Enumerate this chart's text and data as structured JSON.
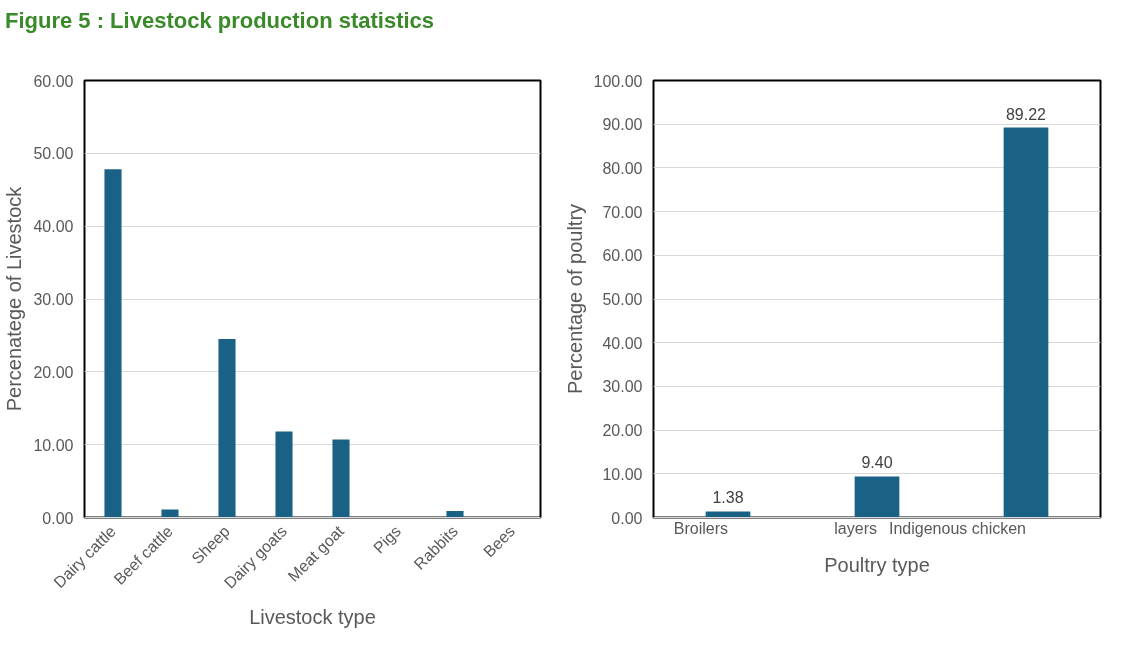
{
  "chart_data": [
    {
      "type": "bar",
      "title": "Figure 5 : Livestock production statistics",
      "xlabel": "Livestock type",
      "ylabel": "Percenatege of Livestock",
      "categories": [
        "Dairy cattle",
        "Beef cattle",
        "Sheep",
        "Dairy goats",
        "Meat goat",
        "Pigs",
        "Rabbits",
        "Bees"
      ],
      "values": [
        47.8,
        1.1,
        24.5,
        11.8,
        10.7,
        0,
        0.9,
        null
      ],
      "color": "#1a6285",
      "ylim": [
        0,
        60
      ],
      "yticks": [
        {
          "value": 0,
          "label": "0.00"
        },
        {
          "value": 10,
          "label": "10.00"
        },
        {
          "value": 20,
          "label": "20.00"
        },
        {
          "value": 30,
          "label": "30.00"
        },
        {
          "value": 40,
          "label": "40.00"
        },
        {
          "value": 50,
          "label": "50.00"
        },
        {
          "value": 60,
          "label": "60.00"
        }
      ],
      "grid": "y"
    },
    {
      "type": "bar",
      "xlabel": "Poultry type",
      "ylabel": "Percentage of poultry",
      "categories": [
        "Broilers",
        "layers",
        "Indigenous chicken"
      ],
      "values": [
        1.38,
        9.4,
        89.22
      ],
      "value_labels": [
        "1.38",
        "9.40",
        "89.22"
      ],
      "color": "#1a6285",
      "ylim": [
        0,
        100
      ],
      "yticks": [
        {
          "value": 0,
          "label": "0.00"
        },
        {
          "value": 10,
          "label": "10.00"
        },
        {
          "value": 20,
          "label": "20.00"
        },
        {
          "value": 30,
          "label": "30.00"
        },
        {
          "value": 40,
          "label": "40.00"
        },
        {
          "value": 50,
          "label": "50.00"
        },
        {
          "value": 60,
          "label": "60.00"
        },
        {
          "value": 70,
          "label": "70.00"
        },
        {
          "value": 80,
          "label": "80.00"
        },
        {
          "value": 90,
          "label": "90.00"
        },
        {
          "value": 100,
          "label": "100.00"
        }
      ],
      "grid": "y"
    }
  ]
}
